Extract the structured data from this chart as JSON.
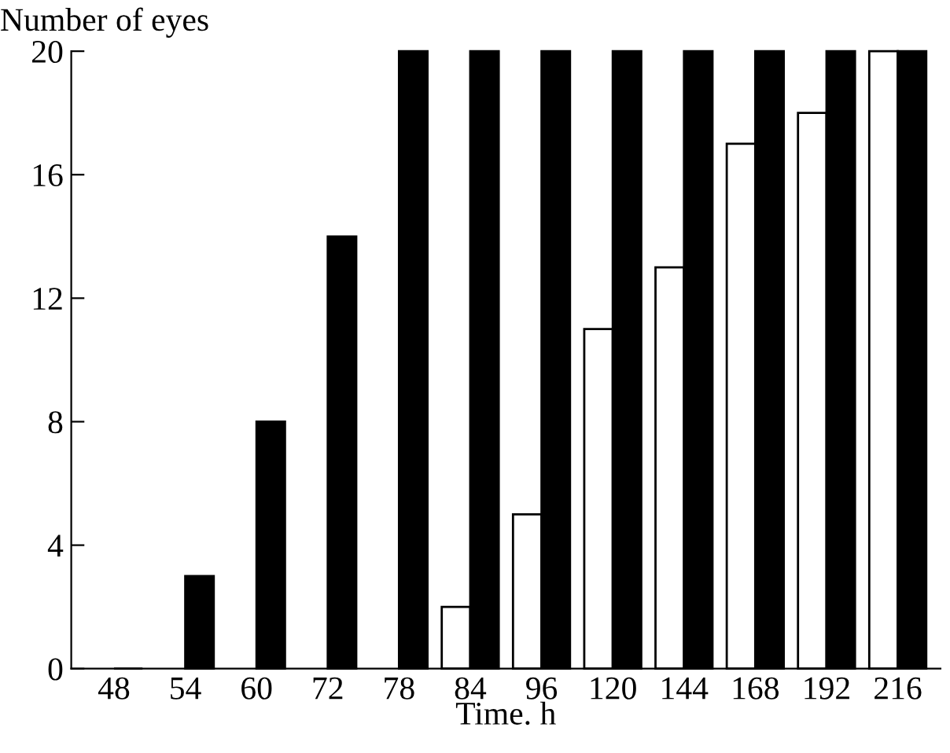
{
  "chart_data": {
    "type": "bar",
    "ylabel": "Number of eyes",
    "xlabel": "Time. h",
    "categories": [
      "48",
      "54",
      "60",
      "72",
      "78",
      "84",
      "96",
      "120",
      "144",
      "168",
      "192",
      "216"
    ],
    "series": [
      {
        "color": "#ffffff",
        "values": [
          0,
          0,
          0,
          0,
          0,
          2,
          5,
          11,
          13,
          17,
          18,
          20
        ]
      },
      {
        "color": "#000000",
        "values": [
          0,
          3,
          8,
          14,
          20,
          20,
          20,
          20,
          20,
          20,
          20,
          20
        ]
      }
    ],
    "ylim": [
      0,
      20
    ],
    "yticks": [
      0,
      4,
      8,
      12,
      16,
      20
    ],
    "grid": false,
    "legend": false
  }
}
